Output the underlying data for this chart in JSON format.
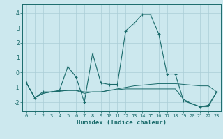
{
  "xlabel": "Humidex (Indice chaleur)",
  "bg_color": "#cce8ee",
  "grid_color": "#aacdd6",
  "line_color": "#1a6b6b",
  "xlim": [
    -0.5,
    23.5
  ],
  "ylim": [
    -2.6,
    4.6
  ],
  "xticks": [
    0,
    1,
    2,
    3,
    4,
    5,
    6,
    7,
    8,
    9,
    10,
    11,
    12,
    13,
    14,
    15,
    16,
    17,
    18,
    19,
    20,
    21,
    22,
    23
  ],
  "yticks": [
    -2,
    -1,
    0,
    1,
    2,
    3,
    4
  ],
  "series_main": [
    [
      0,
      -0.7
    ],
    [
      1,
      -1.7
    ],
    [
      2,
      -1.3
    ],
    [
      3,
      -1.3
    ],
    [
      4,
      -1.2
    ],
    [
      5,
      0.4
    ],
    [
      6,
      -0.3
    ],
    [
      7,
      -2.0
    ],
    [
      8,
      1.3
    ],
    [
      9,
      -0.7
    ],
    [
      10,
      -0.8
    ],
    [
      11,
      -0.8
    ],
    [
      12,
      2.8
    ],
    [
      13,
      3.3
    ],
    [
      14,
      3.9
    ],
    [
      15,
      3.9
    ],
    [
      16,
      2.6
    ],
    [
      17,
      -0.1
    ],
    [
      18,
      -0.1
    ],
    [
      19,
      -1.9
    ],
    [
      20,
      -2.1
    ],
    [
      21,
      -2.3
    ],
    [
      22,
      -2.2
    ],
    [
      23,
      -1.3
    ]
  ],
  "series2": [
    [
      0,
      -0.7
    ],
    [
      1,
      -1.7
    ],
    [
      2,
      -1.4
    ],
    [
      3,
      -1.3
    ],
    [
      4,
      -1.25
    ],
    [
      5,
      -1.2
    ],
    [
      6,
      -1.2
    ],
    [
      7,
      -1.3
    ],
    [
      8,
      -1.3
    ],
    [
      9,
      -1.3
    ],
    [
      10,
      -1.2
    ],
    [
      11,
      -1.1
    ],
    [
      12,
      -1.0
    ],
    [
      13,
      -0.9
    ],
    [
      14,
      -0.85
    ],
    [
      15,
      -0.8
    ],
    [
      16,
      -0.75
    ],
    [
      17,
      -0.75
    ],
    [
      18,
      -0.75
    ],
    [
      19,
      -0.8
    ],
    [
      20,
      -0.85
    ],
    [
      21,
      -0.9
    ],
    [
      22,
      -0.9
    ],
    [
      23,
      -1.3
    ]
  ],
  "series3": [
    [
      0,
      -0.7
    ],
    [
      1,
      -1.7
    ],
    [
      2,
      -1.4
    ],
    [
      3,
      -1.3
    ],
    [
      4,
      -1.25
    ],
    [
      5,
      -1.2
    ],
    [
      6,
      -1.2
    ],
    [
      7,
      -1.4
    ],
    [
      8,
      -1.3
    ],
    [
      9,
      -1.3
    ],
    [
      10,
      -1.2
    ],
    [
      11,
      -1.15
    ],
    [
      12,
      -1.1
    ],
    [
      13,
      -1.1
    ],
    [
      14,
      -1.1
    ],
    [
      15,
      -1.1
    ],
    [
      16,
      -1.1
    ],
    [
      17,
      -1.1
    ],
    [
      18,
      -1.1
    ],
    [
      19,
      -1.8
    ],
    [
      20,
      -2.1
    ],
    [
      21,
      -2.3
    ],
    [
      22,
      -2.3
    ],
    [
      23,
      -1.3
    ]
  ]
}
